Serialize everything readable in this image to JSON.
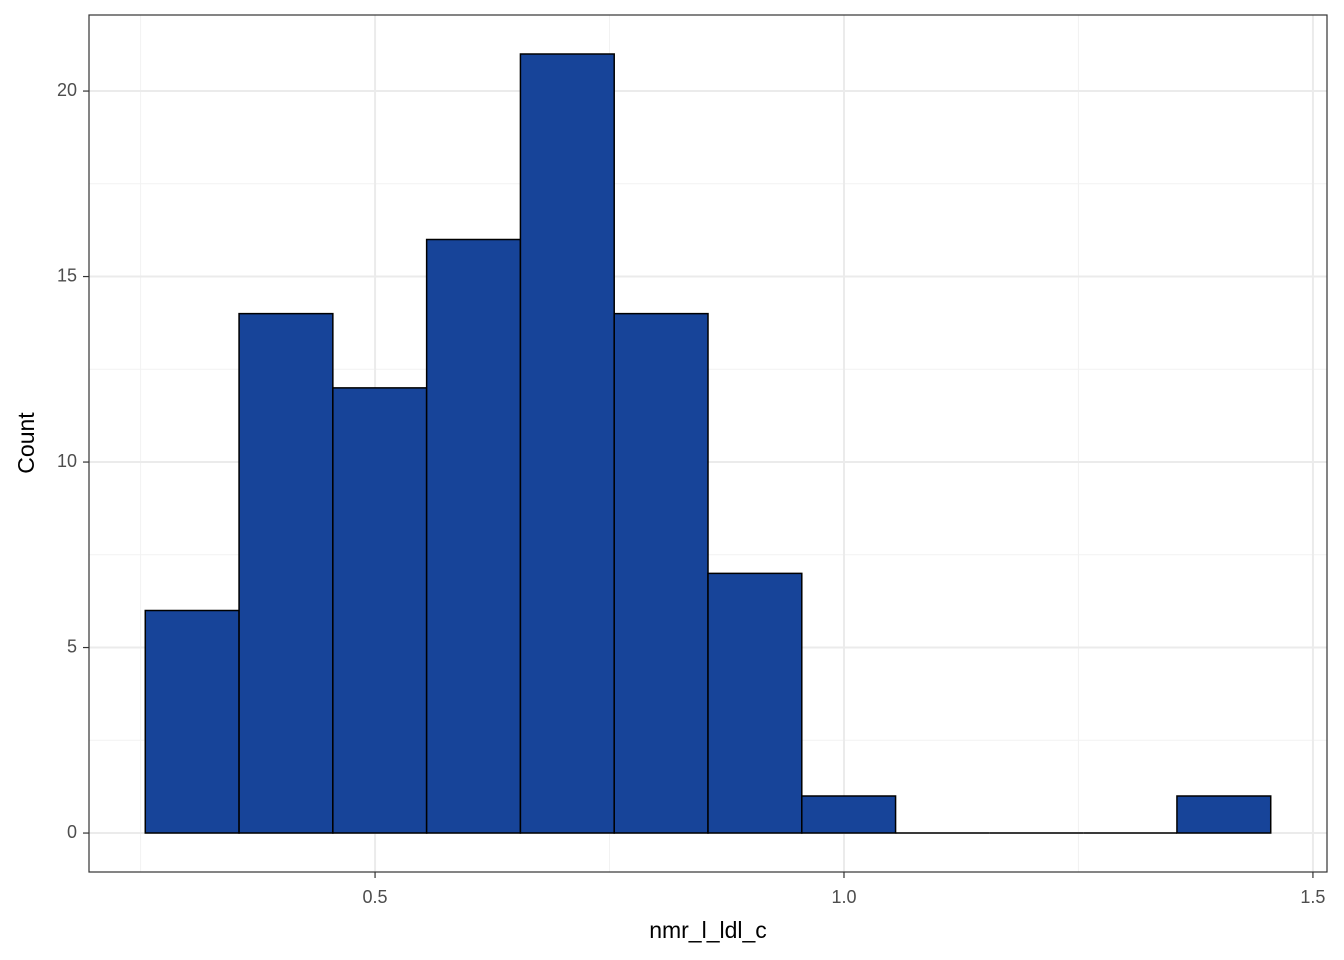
{
  "chart_data": {
    "type": "histogram",
    "x_label": "nmr_l_ldl_c",
    "y_label": "Count",
    "bins": [
      0.255,
      0.355,
      0.455,
      0.555,
      0.655,
      0.755,
      0.855,
      0.955,
      1.055,
      1.155,
      1.255,
      1.355,
      1.455
    ],
    "values": [
      6,
      14,
      12,
      16,
      21,
      14,
      7,
      1,
      0,
      0,
      0,
      1
    ],
    "color": "#174499",
    "edge_color": "#000000",
    "xlim": [
      0.195,
      1.515
    ],
    "ylim": [
      -1.05,
      22.05
    ],
    "xticks": [
      0.5,
      {
        "value": 1,
        "label": "1.0"
      },
      1.5
    ],
    "yticks": [
      0,
      5,
      10,
      15,
      20
    ],
    "x_minor_grid": [
      0.25,
      0.75,
      1.25
    ],
    "y_minor_grid": [
      2.5,
      7.5,
      12.5,
      17.5
    ],
    "grid": true
  }
}
